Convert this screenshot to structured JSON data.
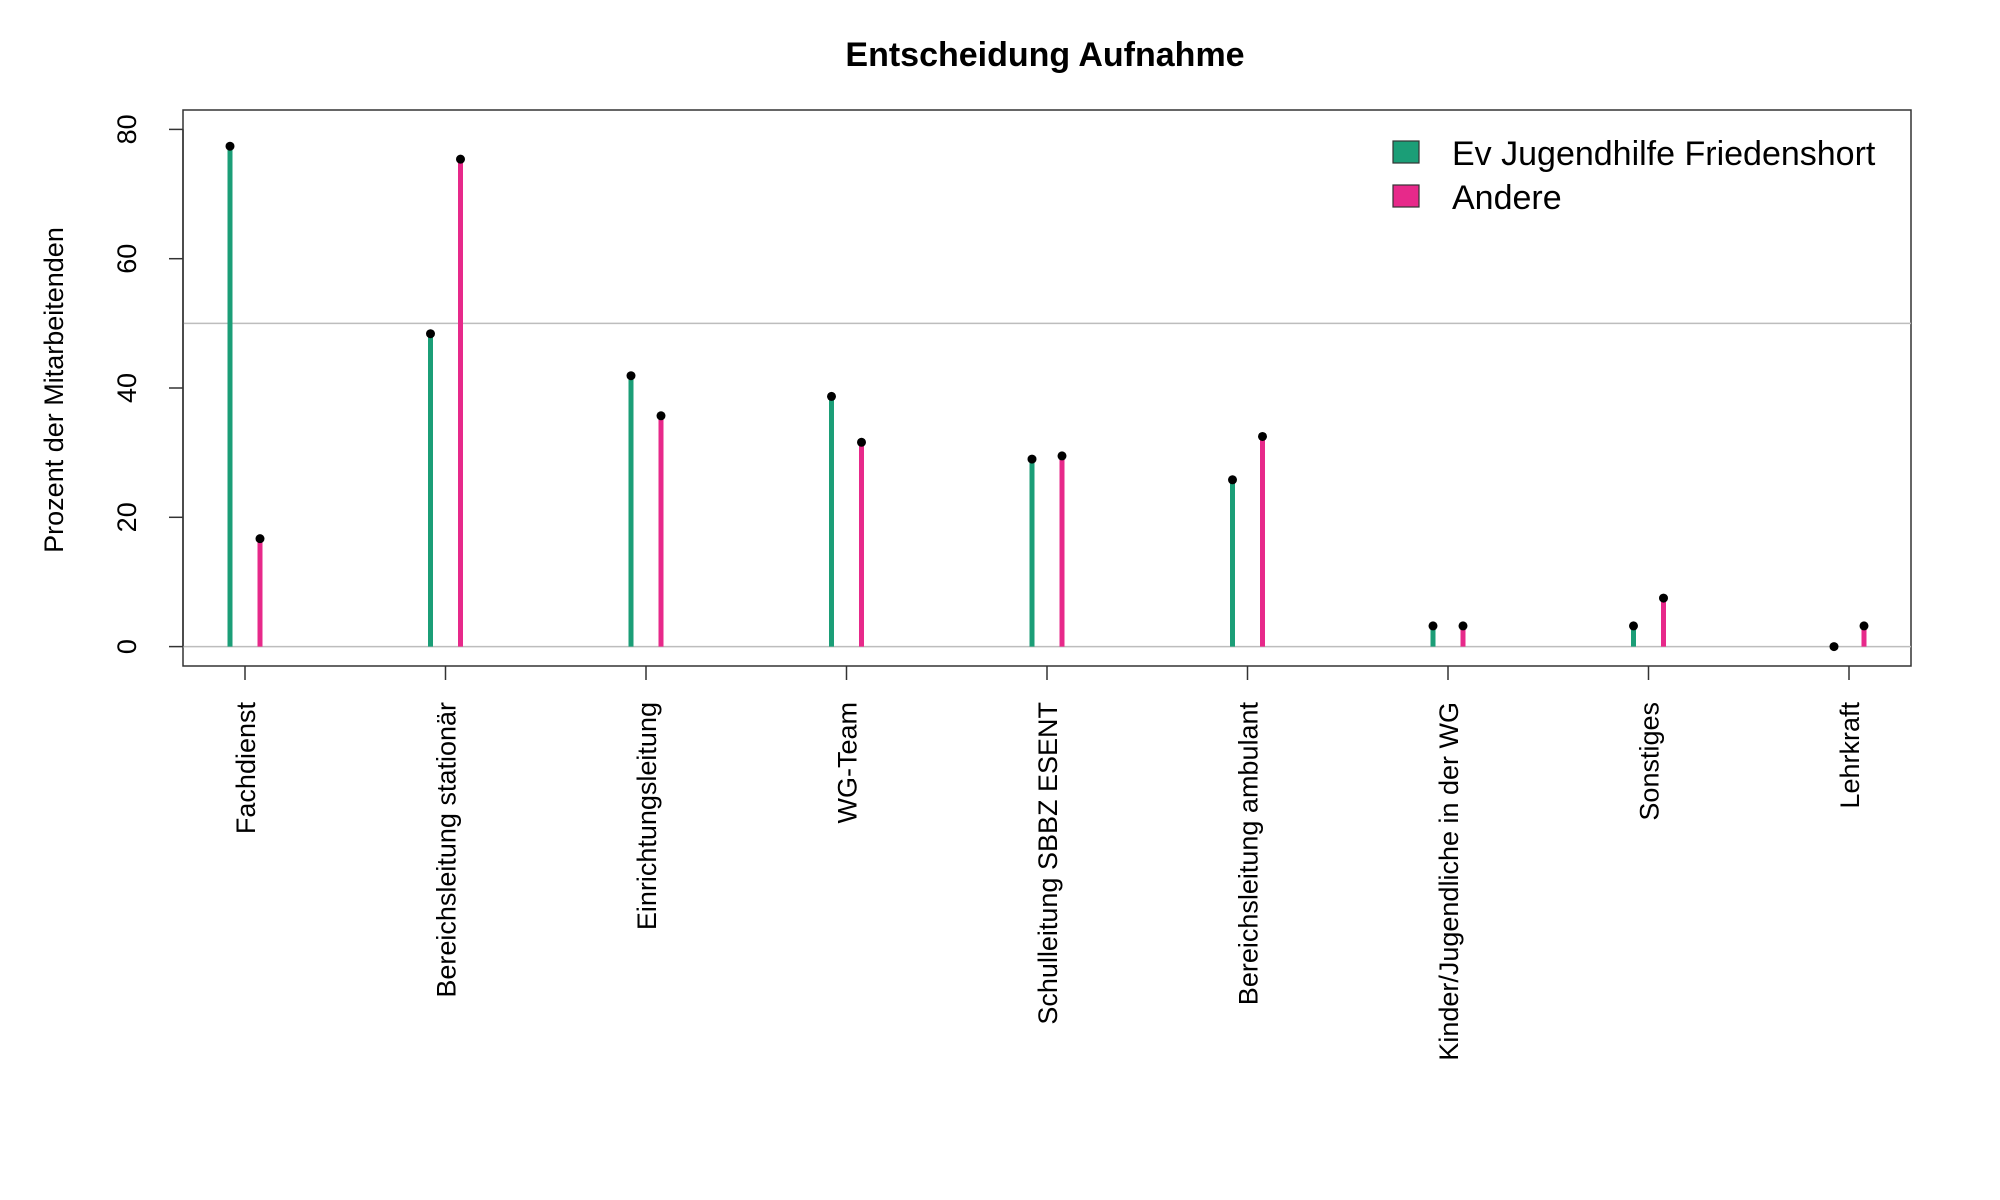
{
  "chart_data": {
    "type": "bar",
    "title": "Entscheidung Aufnahme",
    "xlabel": "",
    "ylabel": "Prozent der Mitarbeitenden",
    "ylim": [
      -3,
      83
    ],
    "yticks": [
      0,
      20,
      40,
      60,
      80
    ],
    "reference_lines": [
      0,
      50
    ],
    "categories": [
      "Fachdienst",
      "Bereichsleitung stationär",
      "Einrichtungsleitung",
      "WG-Team",
      "Schulleitung SBBZ ESENT",
      "Bereichsleitung ambulant",
      "Kinder/Jugendliche in der WG",
      "Sonstiges",
      "Lehrkraft"
    ],
    "series": [
      {
        "name": "Ev Jugendhilfe Friedenshort",
        "color": "#1b9e77",
        "values": [
          77.4,
          48.4,
          41.9,
          38.7,
          29.0,
          25.8,
          3.2,
          3.2,
          0.0
        ]
      },
      {
        "name": "Andere",
        "color": "#e7298a",
        "values": [
          16.7,
          75.4,
          35.7,
          31.6,
          29.5,
          32.5,
          3.2,
          7.5,
          3.2
        ]
      }
    ],
    "legend": {
      "position": "top-right"
    },
    "grid": false
  }
}
